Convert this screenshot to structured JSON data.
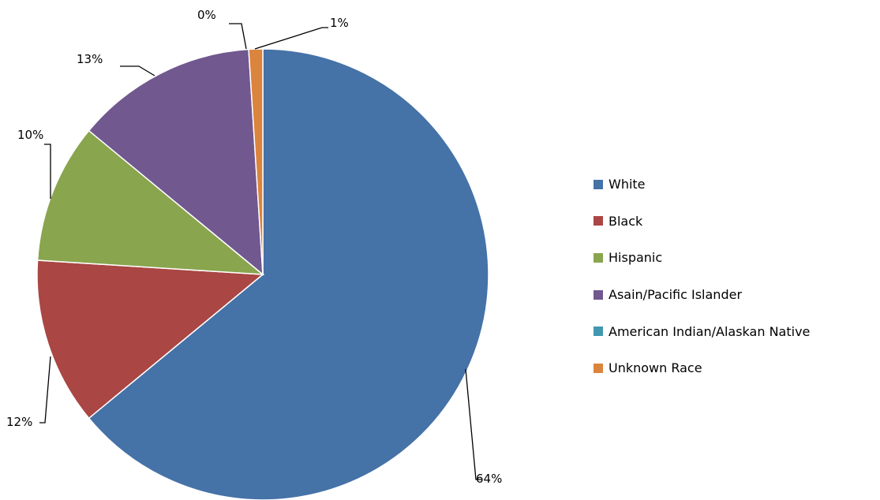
{
  "chart_data": {
    "type": "pie",
    "title": "",
    "legend_position": "right",
    "slices": [
      {
        "label": "White",
        "value": 64,
        "data_label": "64%",
        "color": "#4572A7"
      },
      {
        "label": "Black",
        "value": 12,
        "data_label": "12%",
        "color": "#AA4643"
      },
      {
        "label": "Hispanic",
        "value": 10,
        "data_label": "10%",
        "color": "#89A54E"
      },
      {
        "label": "Asain/Pacific Islander",
        "value": 13,
        "data_label": "13%",
        "color": "#71588F"
      },
      {
        "label": "American Indian/Alaskan Native",
        "value": 0,
        "data_label": "0%",
        "color": "#4198AF"
      },
      {
        "label": "Unknown Race",
        "value": 1,
        "data_label": "1%",
        "color": "#DB843D"
      }
    ]
  }
}
